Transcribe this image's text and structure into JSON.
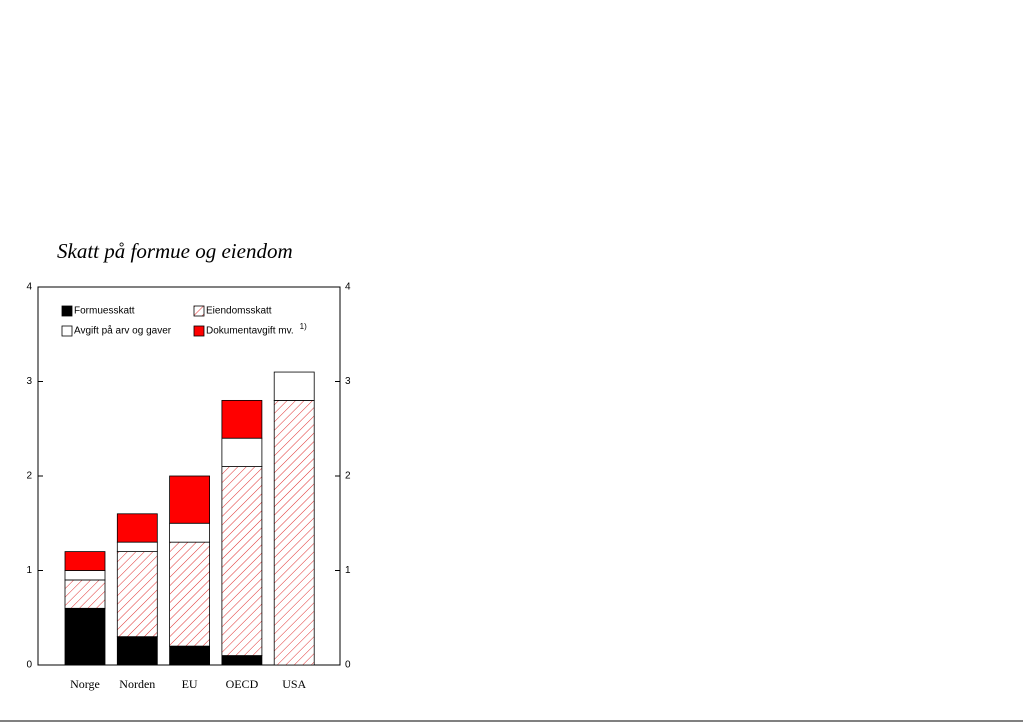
{
  "chart_data": {
    "type": "stacked_bar",
    "title": "Skatt på formue og eiendom",
    "categories": [
      "Norge",
      "Norden",
      "EU",
      "OECD",
      "USA"
    ],
    "series": [
      {
        "name": "Formuesskatt",
        "color": "#000000",
        "pattern": "solid",
        "values": [
          0.6,
          0.3,
          0.2,
          0.1,
          0
        ]
      },
      {
        "name": "Eiendomsskatt",
        "color": "#ff0000",
        "pattern": "hatch",
        "values": [
          0.3,
          0.9,
          1.1,
          2.0,
          2.8
        ]
      },
      {
        "name": "Avgift på arv og gaver",
        "color": "#ffffff",
        "pattern": "solid",
        "values": [
          0.1,
          0.1,
          0.2,
          0.3,
          0.3
        ]
      },
      {
        "name": "Dokumentavgift mv.",
        "color": "#ff0000",
        "pattern": "solid",
        "values": [
          0.2,
          0.3,
          0.5,
          0.4,
          0
        ]
      }
    ],
    "legend_note": "1)",
    "ylim": [
      0,
      4
    ],
    "yticks": [
      0,
      1,
      2,
      3,
      4
    ],
    "right_axis": true,
    "grid": false
  }
}
